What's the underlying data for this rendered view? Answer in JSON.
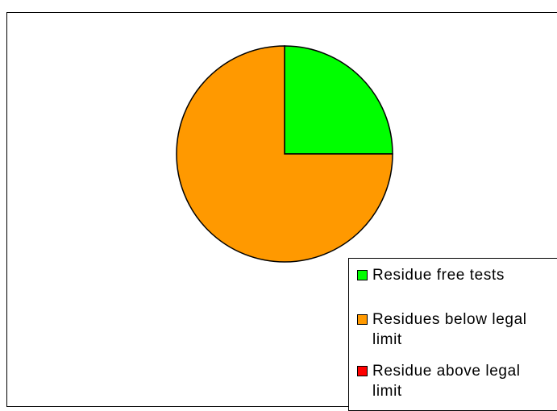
{
  "chart_data": {
    "type": "pie",
    "categories": [
      "Residue free tests",
      "Residues below legal limit",
      "Residue above legal limit"
    ],
    "values": [
      25,
      75,
      0
    ],
    "colors": [
      "#00ff00",
      "#ff9900",
      "#ff0000"
    ],
    "legend": "lower right"
  }
}
